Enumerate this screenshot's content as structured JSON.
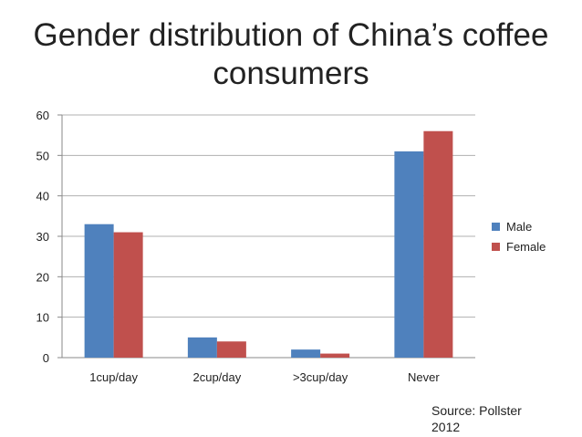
{
  "chart_data": {
    "type": "bar",
    "title": "Gender distribution of China’s coffee consumers",
    "categories": [
      "1cup/day",
      "2cup/day",
      ">3cup/day",
      "Never"
    ],
    "series": [
      {
        "name": "Male",
        "values": [
          33,
          5,
          2,
          51
        ],
        "color": "#4f81bd"
      },
      {
        "name": "Female",
        "values": [
          31,
          4,
          1,
          56
        ],
        "color": "#c0504d"
      }
    ],
    "ylim": [
      0,
      60
    ],
    "yticks": [
      0,
      10,
      20,
      30,
      40,
      50,
      60
    ],
    "grid": true,
    "legend": "right"
  },
  "source": {
    "line1": "Source: Pollster",
    "line2": "2012"
  }
}
